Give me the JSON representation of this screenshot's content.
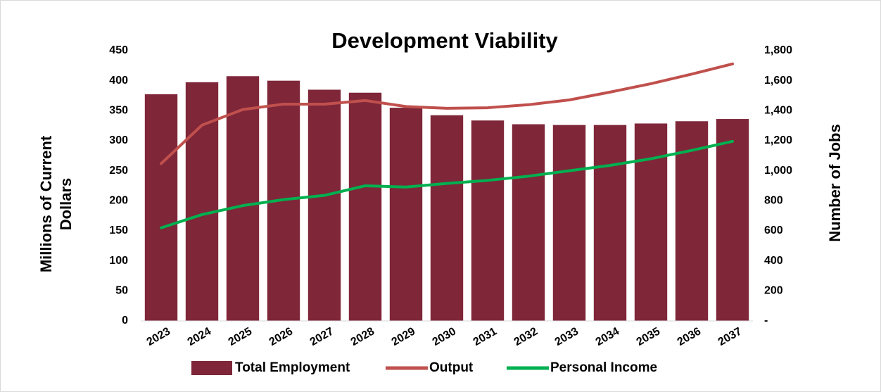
{
  "chart_data": {
    "type": "combo",
    "title": "Development Viability",
    "y_label": "Millions of Current Dollars",
    "y2_label": "Number of Jobs",
    "categories": [
      "2023",
      "2024",
      "2025",
      "2026",
      "2027",
      "2028",
      "2029",
      "2030",
      "2031",
      "2032",
      "2033",
      "2034",
      "2035",
      "2036",
      "2037"
    ],
    "series": [
      {
        "name": "Total Employment",
        "type": "bar",
        "axis": "y2",
        "color": "#7f2639",
        "values": [
          1510,
          1590,
          1630,
          1600,
          1540,
          1520,
          1420,
          1370,
          1335,
          1310,
          1305,
          1305,
          1315,
          1330,
          1345
        ]
      },
      {
        "name": "Output",
        "type": "line",
        "color": "#c0504d",
        "values": [
          262,
          326,
          352,
          361,
          361,
          367,
          357,
          354,
          355,
          360,
          368,
          381,
          395,
          411,
          428
        ]
      },
      {
        "name": "Personal Income",
        "type": "line",
        "color": "#00b050",
        "values": [
          155,
          177,
          192,
          202,
          209,
          225,
          223,
          229,
          234,
          241,
          250,
          259,
          270,
          284,
          299
        ]
      }
    ],
    "ylim": [
      0,
      450
    ],
    "yticks": [
      0,
      50,
      100,
      150,
      200,
      250,
      300,
      350,
      400,
      450
    ],
    "y2lim": [
      0,
      1800
    ],
    "y2ticks": [
      {
        "value": 0,
        "label": "-"
      },
      200,
      400,
      600,
      800,
      {
        "value": 1000,
        "label": "1,000"
      },
      {
        "value": 1200,
        "label": "1,200"
      },
      {
        "value": 1400,
        "label": "1,400"
      },
      {
        "value": 1600,
        "label": "1,600"
      },
      {
        "value": 1800,
        "label": "1,800"
      }
    ],
    "legend": "bottom"
  }
}
